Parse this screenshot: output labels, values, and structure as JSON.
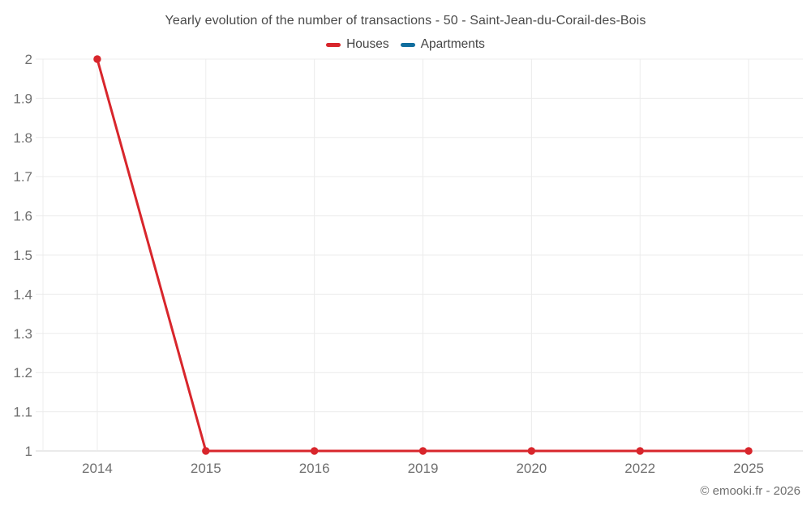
{
  "title": "Yearly evolution of the number of transactions - 50 - Saint-Jean-du-Corail-des-Bois",
  "legend": {
    "items": [
      {
        "label": "Houses",
        "color": "#d8262c"
      },
      {
        "label": "Apartments",
        "color": "#116e9e"
      }
    ]
  },
  "copyright": "© emooki.fr - 2026",
  "colors": {
    "gridline": "#ececec",
    "axis_line": "#d5d5d5",
    "tick_label": "#6f6f6f",
    "title_text": "#4a4a4a"
  },
  "chart_data": {
    "type": "line",
    "title": "Yearly evolution of the number of transactions - 50 - Saint-Jean-du-Corail-des-Bois",
    "categories": [
      "2014",
      "2015",
      "2016",
      "2019",
      "2020",
      "2022",
      "2025"
    ],
    "series": [
      {
        "name": "Houses",
        "color": "#d8262c",
        "values": [
          2,
          1,
          1,
          1,
          1,
          1,
          1
        ]
      },
      {
        "name": "Apartments",
        "color": "#116e9e",
        "values": []
      }
    ],
    "xlabel": "",
    "ylabel": "",
    "ylim": [
      1,
      2
    ],
    "yticks": [
      1,
      1.1,
      1.2,
      1.3,
      1.4,
      1.5,
      1.6,
      1.7,
      1.8,
      1.9,
      2
    ],
    "grid": true,
    "legend_position": "top"
  }
}
